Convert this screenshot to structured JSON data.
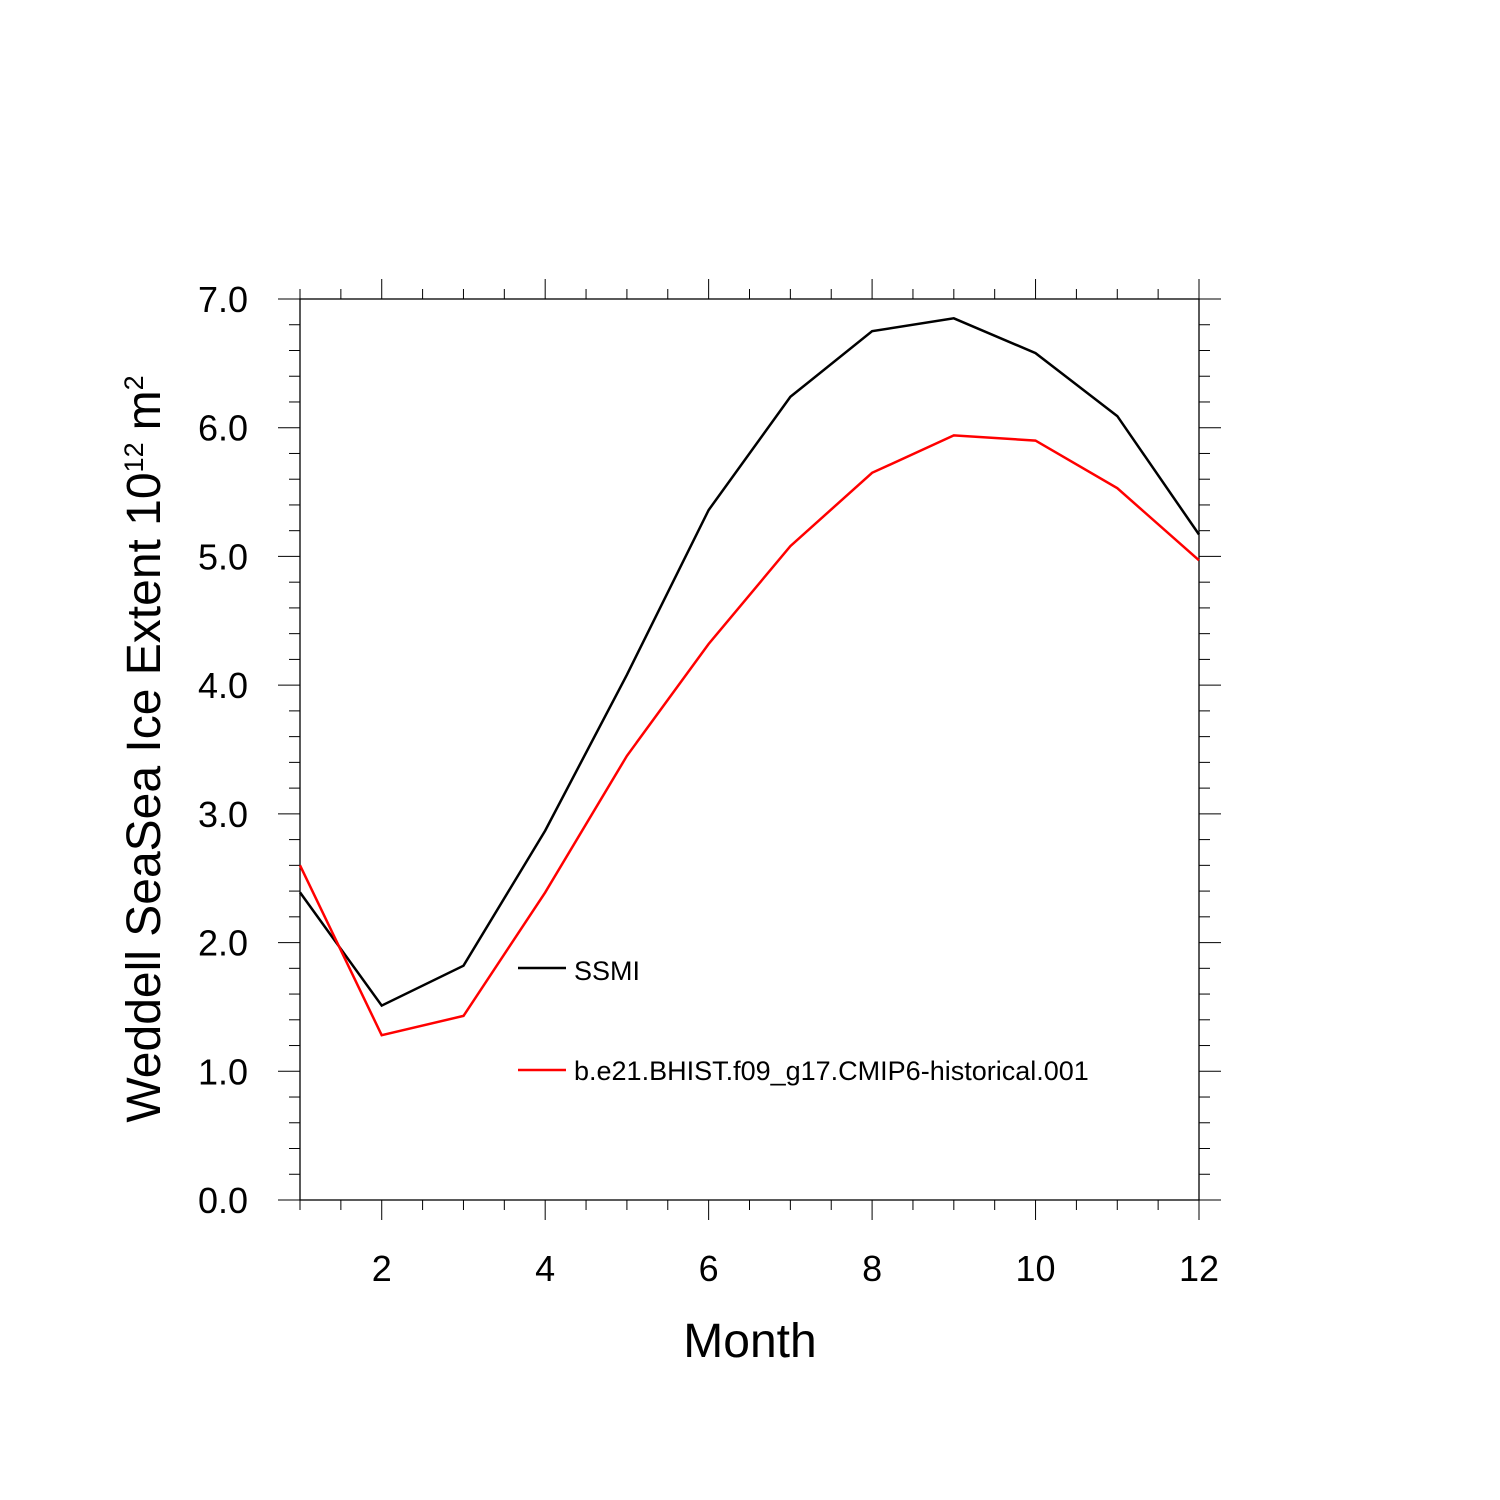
{
  "chart_data": {
    "type": "line",
    "title": "",
    "xlabel": "Month",
    "ylabel": {
      "main": "Weddell SeaSea Ice Extent 10",
      "exponent": "12",
      "unit": "m",
      "unit_exponent": "2"
    },
    "xlim": [
      1,
      12
    ],
    "ylim": [
      0,
      7
    ],
    "x_ticks": [
      2,
      4,
      6,
      8,
      10,
      12
    ],
    "x_tick_labels": [
      "2",
      "4",
      "6",
      "8",
      "10",
      "12"
    ],
    "y_ticks": [
      0,
      1,
      2,
      3,
      4,
      5,
      6,
      7
    ],
    "y_tick_labels": [
      "0.0",
      "1.0",
      "2.0",
      "3.0",
      "4.0",
      "5.0",
      "6.0",
      "7.0"
    ],
    "grid": false,
    "legend_position": "inside-bottom-center",
    "x": [
      1,
      2,
      3,
      4,
      5,
      6,
      7,
      8,
      9,
      10,
      11,
      12
    ],
    "series": [
      {
        "name": "SSMI",
        "color": "#000000",
        "values": [
          2.39,
          1.51,
          1.82,
          2.87,
          4.08,
          5.36,
          6.24,
          6.75,
          6.85,
          6.58,
          6.09,
          5.17
        ]
      },
      {
        "name": "b.e21.BHIST.f09_g17.CMIP6-historical.001",
        "color": "#ff0000",
        "values": [
          2.6,
          1.28,
          1.43,
          2.39,
          3.45,
          4.32,
          5.08,
          5.65,
          5.94,
          5.9,
          5.53,
          4.97
        ]
      }
    ]
  }
}
